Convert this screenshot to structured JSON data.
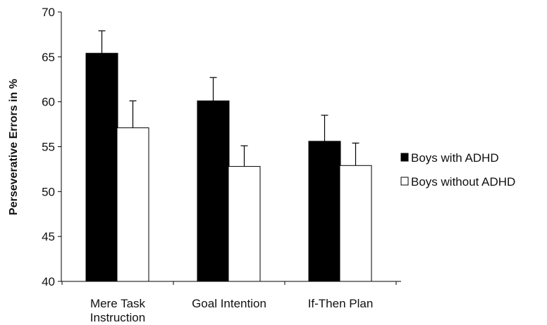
{
  "chart_data": {
    "type": "bar",
    "title": "",
    "xlabel": "",
    "ylabel": "Perseverative Errors in %",
    "ylim": [
      40,
      70
    ],
    "yticks": [
      40,
      45,
      50,
      55,
      60,
      65,
      70
    ],
    "categories": [
      [
        "Mere Task",
        "Instruction"
      ],
      [
        "Goal Intention"
      ],
      [
        "If-Then Plan"
      ]
    ],
    "series": [
      {
        "name": "Boys with ADHD",
        "color": "#000000",
        "values": [
          65.4,
          60.1,
          55.6
        ],
        "errors": [
          2.5,
          2.6,
          2.9
        ]
      },
      {
        "name": "Boys without ADHD",
        "color": "#ffffff",
        "values": [
          57.1,
          52.8,
          52.9
        ],
        "errors": [
          3.0,
          2.3,
          2.5
        ]
      }
    ],
    "error_bars": "upper",
    "grid": false,
    "legend_position": "right"
  }
}
